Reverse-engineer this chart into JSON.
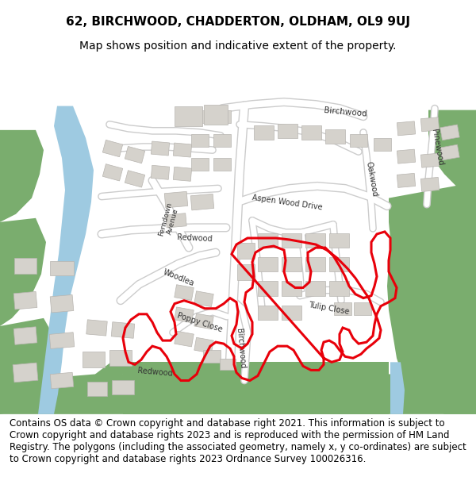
{
  "title_line1": "62, BIRCHWOOD, CHADDERTON, OLDHAM, OL9 9UJ",
  "title_line2": "Map shows position and indicative extent of the property.",
  "footer_text": "Contains OS data © Crown copyright and database right 2021. This information is subject to Crown copyright and database rights 2023 and is reproduced with the permission of HM Land Registry. The polygons (including the associated geometry, namely x, y co-ordinates) are subject to Crown copyright and database rights 2023 Ordnance Survey 100026316.",
  "title_fontsize": 11,
  "subtitle_fontsize": 10,
  "footer_fontsize": 8.5,
  "bg_color": "#ffffff",
  "map_bg": "#f0eeeb",
  "green_color": "#7aad6e",
  "blue_color": "#9ecae1",
  "road_color": "#ffffff",
  "building_color": "#d5d2cc",
  "building_outline": "#b8b5b0",
  "red_outline": "#e8000a"
}
